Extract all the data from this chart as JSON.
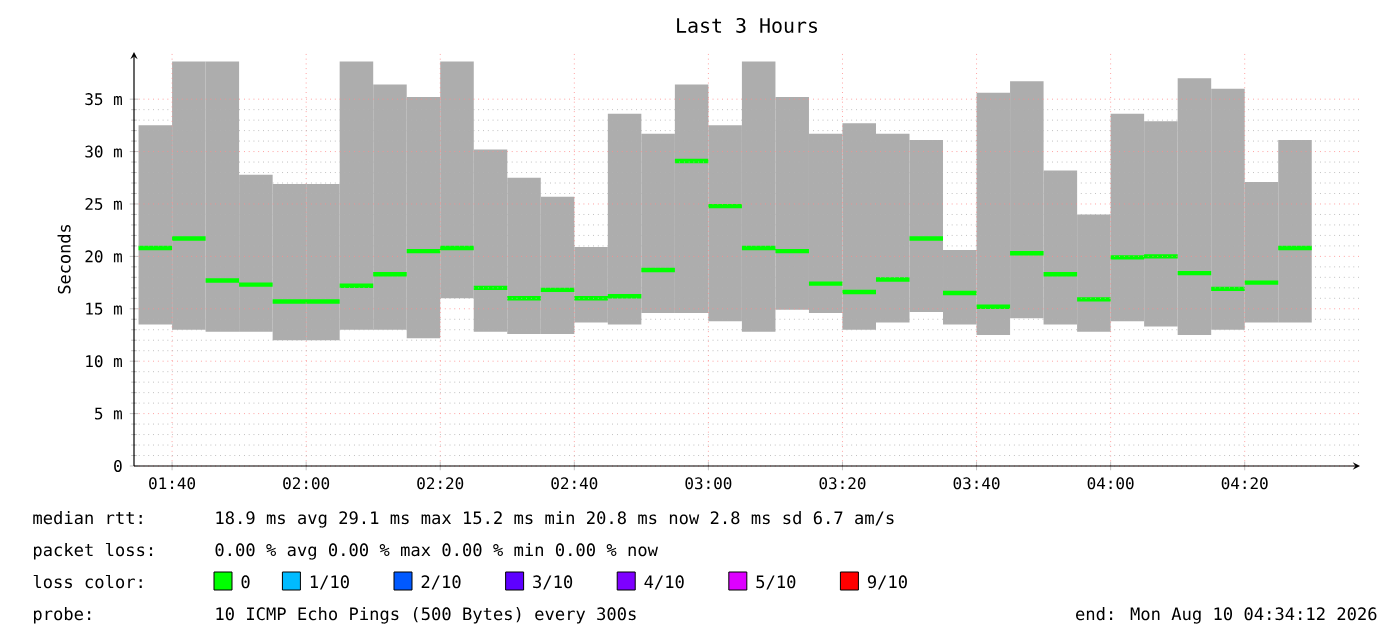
{
  "chart_data": {
    "type": "step",
    "title": "Last 3 Hours",
    "ylabel": "Seconds",
    "xlim": [
      1.572,
      4.62
    ],
    "ylim": [
      0,
      39.5
    ],
    "xticks": [
      {
        "value": 1.666667,
        "label": "01:40"
      },
      {
        "value": 2,
        "label": "02:00"
      },
      {
        "value": 2.333333,
        "label": "02:20"
      },
      {
        "value": 2.666667,
        "label": "02:40"
      },
      {
        "value": 3,
        "label": "03:00"
      },
      {
        "value": 3.333333,
        "label": "03:20"
      },
      {
        "value": 3.666667,
        "label": "03:40"
      },
      {
        "value": 4,
        "label": "04:00"
      },
      {
        "value": 4.333333,
        "label": "04:20"
      }
    ],
    "yticks": [
      0,
      {
        "value": 5,
        "label": "5 m"
      },
      {
        "value": 10,
        "label": "10 m"
      },
      {
        "value": 15,
        "label": "15 m"
      },
      {
        "value": 20,
        "label": "20 m"
      },
      {
        "value": 25,
        "label": "25 m"
      },
      {
        "value": 30,
        "label": "30 m"
      },
      {
        "value": 35,
        "label": "35 m"
      }
    ],
    "grid": true,
    "legend": "bottom",
    "legend_title": "loss color:",
    "series": [
      {
        "name": "0",
        "color": "#00ff00",
        "x": [
          1.5833,
          1.6667,
          1.75,
          1.8333,
          1.9167,
          2,
          2.0833,
          2.1667,
          2.25,
          2.3333,
          2.4167,
          2.5,
          2.5833,
          2.6667,
          2.75,
          2.8333,
          2.9167,
          3,
          3.0833,
          3.1667,
          3.25,
          3.3333,
          3.4167,
          3.5,
          3.5833,
          3.6667,
          3.75,
          3.8333,
          3.9167,
          4,
          4.0833,
          4.1667,
          4.25,
          4.3333,
          4.4167,
          4.5
        ],
        "values": [
          20.8,
          21.7,
          17.7,
          17.3,
          15.7,
          15.7,
          17.2,
          18.3,
          20.5,
          20.8,
          17.0,
          16.0,
          16.8,
          16.0,
          16.2,
          18.7,
          29.1,
          24.8,
          20.8,
          20.5,
          17.4,
          16.6,
          17.8,
          21.7,
          16.5,
          15.2,
          20.3,
          18.3,
          15.9,
          19.9,
          20.0,
          18.4,
          16.9,
          17.5,
          20.8,
          20.8
        ],
        "lower": [
          13.5,
          13.0,
          12.8,
          12.8,
          12.0,
          12.0,
          13.0,
          13.0,
          12.2,
          16.0,
          12.8,
          12.6,
          12.6,
          13.7,
          13.5,
          14.6,
          14.6,
          13.8,
          12.8,
          14.9,
          14.6,
          13.0,
          13.7,
          14.7,
          13.5,
          12.5,
          14.1,
          13.5,
          12.8,
          13.8,
          13.3,
          12.5,
          13.0,
          13.7,
          13.7,
          13.7
        ],
        "upper": [
          32.5,
          38.6,
          38.6,
          27.8,
          26.9,
          26.9,
          38.6,
          36.4,
          35.2,
          38.6,
          30.2,
          27.5,
          25.7,
          20.9,
          33.6,
          31.7,
          36.4,
          32.5,
          38.6,
          35.2,
          31.7,
          32.7,
          31.7,
          31.1,
          20.6,
          35.6,
          36.7,
          28.2,
          24.0,
          33.6,
          32.9,
          37.0,
          36.0,
          27.1,
          31.1,
          31.1
        ]
      },
      {
        "name": "1/10",
        "color": "#00bbff"
      },
      {
        "name": "2/10",
        "color": "#0059ff"
      },
      {
        "name": "3/10",
        "color": "#5e00ff"
      },
      {
        "name": "4/10",
        "color": "#7e00ff"
      },
      {
        "name": "5/10",
        "color": "#dd00ff"
      },
      {
        "name": "9/10",
        "color": "#ff0000"
      }
    ],
    "annotations": [
      "median rtt:",
      "18.9 ms avg  29.1 ms max  15.2 ms min  20.8 ms now  2.8 ms sd  6.7   am/s",
      "packet loss:",
      "0.00 % avg  0.00 % max  0.00 % min  0.00 % now",
      "probe:",
      "10 ICMP Echo Pings (500 Bytes) every 300s",
      "end: Mon Aug 10 04:34:12 2026"
    ]
  }
}
